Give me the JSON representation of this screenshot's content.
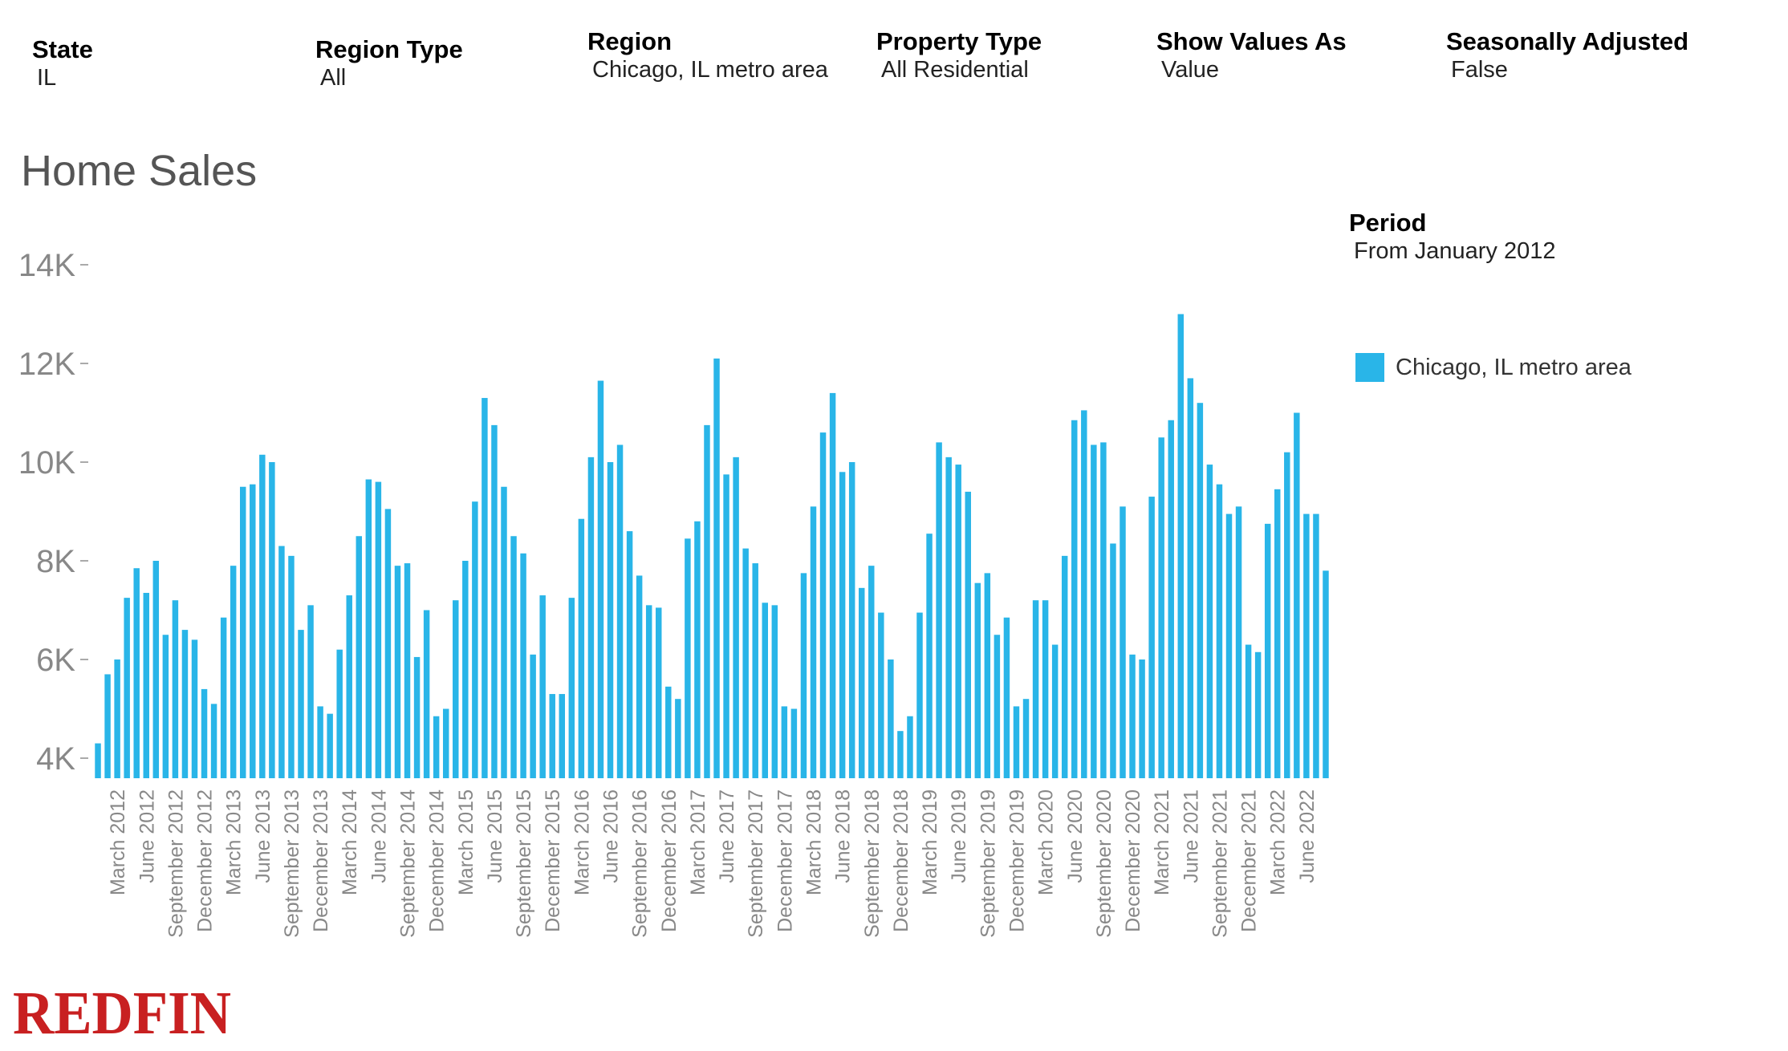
{
  "filters": [
    {
      "label": "State",
      "value": "IL"
    },
    {
      "label": "Region Type",
      "value": "All"
    },
    {
      "label": "Region",
      "value": "Chicago, IL metro area"
    },
    {
      "label": "Property Type",
      "value": "All Residential"
    },
    {
      "label": "Show Values As",
      "value": "Value"
    },
    {
      "label": "Seasonally Adjusted",
      "value": "False"
    }
  ],
  "period": {
    "label": "Period",
    "value": "From January 2012"
  },
  "legend": {
    "label": "Chicago, IL metro area",
    "color": "#29b5e8"
  },
  "logo": {
    "text": "REDFIN",
    "color": "#c82021"
  },
  "chart_data": {
    "type": "bar",
    "title": "Home Sales",
    "xlabel": "",
    "ylabel": "",
    "ylim": [
      3600,
      14000
    ],
    "yticks": [
      4000,
      6000,
      8000,
      10000,
      12000,
      14000
    ],
    "ytick_labels": [
      "4K",
      "6K",
      "8K",
      "10K",
      "12K",
      "14K"
    ],
    "grid": false,
    "legend_position": "right",
    "bar_color": "#29b5e8",
    "series": [
      {
        "name": "Chicago, IL metro area"
      }
    ],
    "x_tick_labels": [
      {
        "index": 2,
        "label": "March 2012"
      },
      {
        "index": 5,
        "label": "June 2012"
      },
      {
        "index": 8,
        "label": "September 2012"
      },
      {
        "index": 11,
        "label": "December 2012"
      },
      {
        "index": 14,
        "label": "March 2013"
      },
      {
        "index": 17,
        "label": "June 2013"
      },
      {
        "index": 20,
        "label": "September 2013"
      },
      {
        "index": 23,
        "label": "December 2013"
      },
      {
        "index": 26,
        "label": "March 2014"
      },
      {
        "index": 29,
        "label": "June 2014"
      },
      {
        "index": 32,
        "label": "September 2014"
      },
      {
        "index": 35,
        "label": "December 2014"
      },
      {
        "index": 38,
        "label": "March 2015"
      },
      {
        "index": 41,
        "label": "June 2015"
      },
      {
        "index": 44,
        "label": "September 2015"
      },
      {
        "index": 47,
        "label": "December 2015"
      },
      {
        "index": 50,
        "label": "March 2016"
      },
      {
        "index": 53,
        "label": "June 2016"
      },
      {
        "index": 56,
        "label": "September 2016"
      },
      {
        "index": 59,
        "label": "December 2016"
      },
      {
        "index": 62,
        "label": "March 2017"
      },
      {
        "index": 65,
        "label": "June 2017"
      },
      {
        "index": 68,
        "label": "September 2017"
      },
      {
        "index": 71,
        "label": "December 2017"
      },
      {
        "index": 74,
        "label": "March 2018"
      },
      {
        "index": 77,
        "label": "June 2018"
      },
      {
        "index": 80,
        "label": "September 2018"
      },
      {
        "index": 83,
        "label": "December 2018"
      },
      {
        "index": 86,
        "label": "March 2019"
      },
      {
        "index": 89,
        "label": "June 2019"
      },
      {
        "index": 92,
        "label": "September 2019"
      },
      {
        "index": 95,
        "label": "December 2019"
      },
      {
        "index": 98,
        "label": "March 2020"
      },
      {
        "index": 101,
        "label": "June 2020"
      },
      {
        "index": 104,
        "label": "September 2020"
      },
      {
        "index": 107,
        "label": "December 2020"
      },
      {
        "index": 110,
        "label": "March 2021"
      },
      {
        "index": 113,
        "label": "June 2021"
      },
      {
        "index": 116,
        "label": "September 2021"
      },
      {
        "index": 119,
        "label": "December 2021"
      },
      {
        "index": 122,
        "label": "March 2022"
      },
      {
        "index": 125,
        "label": "June 2022"
      }
    ],
    "values": [
      4300,
      5700,
      6000,
      7250,
      7850,
      7350,
      8000,
      6500,
      7200,
      6600,
      6400,
      5400,
      5100,
      6850,
      7900,
      9500,
      9550,
      10150,
      10000,
      8300,
      8100,
      6600,
      7100,
      5050,
      4900,
      6200,
      7300,
      8500,
      9650,
      9600,
      9050,
      7900,
      7950,
      6050,
      7000,
      4850,
      5000,
      7200,
      8000,
      9200,
      11300,
      10750,
      9500,
      8500,
      8150,
      6100,
      7300,
      5300,
      5300,
      7250,
      8850,
      10100,
      11650,
      10000,
      10350,
      8600,
      7700,
      7100,
      7050,
      5450,
      5200,
      8450,
      8800,
      10750,
      12100,
      9750,
      10100,
      8250,
      7950,
      7150,
      7100,
      5050,
      5000,
      7750,
      9100,
      10600,
      11400,
      9800,
      10000,
      7450,
      7900,
      6950,
      6000,
      4550,
      4850,
      6950,
      8550,
      10400,
      10100,
      9950,
      9400,
      7550,
      7750,
      6500,
      6850,
      5050,
      5200,
      7200,
      7200,
      6300,
      8100,
      10850,
      11050,
      10350,
      10400,
      8350,
      9100,
      6100,
      6000,
      9300,
      10500,
      10850,
      13000,
      11700,
      11200,
      9950,
      9550,
      8950,
      9100,
      6300,
      6150,
      8750,
      9450,
      10200,
      11000,
      8950,
      8950,
      7800
    ]
  }
}
